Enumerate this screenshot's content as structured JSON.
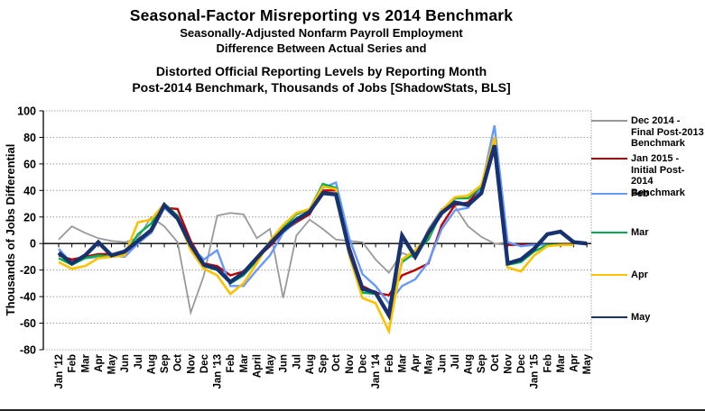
{
  "header": {
    "title": "Seasonal-Factor Misreporting vs 2014 Benchmark",
    "subtitle1": "Seasonally-Adjusted Nonfarm Payroll Employment",
    "subtitle2": "Difference Between Actual Series and",
    "subtitle3": "Distorted Official Reporting Levels by Reporting Month",
    "subtitle4": "Post-2014 Benchmark, Thousands of Jobs [ShadowStats, BLS]"
  },
  "chart_data": {
    "type": "line",
    "ylabel": "Thousands of Jobs Differential",
    "ylim": [
      -80,
      100
    ],
    "ytick_step": 20,
    "ytick_labels": [
      "100",
      "80",
      "60",
      "40",
      "20",
      "0",
      "-20",
      "-40",
      "-60",
      "-80"
    ],
    "grid": "horizontal-dotted",
    "legend_position": "right",
    "categories": [
      "Jan '12",
      "Feb",
      "Mar",
      "Apr",
      "May",
      "Jun",
      "Jul",
      "Aug",
      "Sep",
      "Oct",
      "Nov",
      "Dec",
      "Jan '13",
      "Feb",
      "Mar",
      "April",
      "May",
      "Jun",
      "Jul",
      "Aug",
      "Sep",
      "Oct",
      "Nov",
      "Dec",
      "Jan '14",
      "Feb",
      "Mar",
      "Apr",
      "May",
      "Jun",
      "Jul",
      "Aug",
      "Sep",
      "Oct",
      "Nov",
      "Dec",
      "Jan '15",
      "Feb",
      "Mar",
      "Apr",
      "May"
    ],
    "series": [
      {
        "name": "Dec 2014 - Final Post-2013 Benchmark",
        "legend_lines": [
          "Dec 2014 -",
          "Final Post-2013",
          "Benchmark"
        ],
        "color": "#999999",
        "width": 1.8,
        "values": [
          3,
          13,
          8,
          4,
          2,
          1,
          4,
          20,
          13,
          1,
          -52,
          -24,
          21,
          23,
          22,
          4,
          11,
          -41,
          6,
          18,
          11,
          3,
          2,
          1,
          -12,
          -22,
          -7,
          -11,
          11,
          26,
          28,
          13,
          5,
          0,
          -1,
          -1,
          null,
          null,
          null,
          null,
          null
        ]
      },
      {
        "name": "Jan 2015 - Initial Post-2014 Benchmark",
        "legend_lines": [
          "Jan 2015 -",
          "Initial Post-",
          "2014",
          "Benchmark"
        ],
        "color": "#c00000",
        "width": 2.4,
        "values": [
          -9,
          -12,
          -10,
          -8,
          -8,
          -7,
          1,
          8,
          27,
          26,
          2,
          -15,
          -17,
          -24,
          -21,
          -11,
          -2,
          9,
          16,
          22,
          40,
          40,
          -2,
          -32,
          -37,
          -39,
          -24,
          -20,
          -15,
          14,
          29,
          31,
          42,
          78,
          -1,
          -1,
          -1,
          null,
          null,
          null,
          null
        ]
      },
      {
        "name": "Feb",
        "legend_lines": [
          "Feb"
        ],
        "color": "#6699ff",
        "width": 2.4,
        "values": [
          -4,
          -15,
          -11,
          -10,
          -9,
          -10,
          0,
          8,
          27,
          18,
          -2,
          -12,
          -5,
          -32,
          -32,
          -20,
          -9,
          8,
          17,
          24,
          42,
          46,
          4,
          -23,
          -32,
          -45,
          -32,
          -27,
          -14,
          11,
          25,
          27,
          42,
          89,
          1,
          -2,
          -1,
          -1,
          null,
          null,
          null
        ]
      },
      {
        "name": "Mar",
        "legend_lines": [
          "Mar"
        ],
        "color": "#00b050",
        "width": 2.4,
        "values": [
          -11,
          -16,
          -11,
          -9,
          -10,
          -8,
          7,
          15,
          30,
          21,
          -2,
          -17,
          -20,
          -30,
          -24,
          -13,
          1,
          12,
          22,
          26,
          45,
          42,
          -4,
          -37,
          -38,
          -55,
          -14,
          -7,
          3,
          24,
          34,
          34,
          43,
          79,
          -16,
          -14,
          -6,
          -1,
          -1,
          null,
          null
        ]
      },
      {
        "name": "Apr",
        "legend_lines": [
          "Apr"
        ],
        "color": "#ffc000",
        "width": 2.6,
        "values": [
          -14,
          -19,
          -17,
          -11,
          -10,
          -9,
          16,
          18,
          30,
          19,
          -5,
          -19,
          -24,
          -38,
          -30,
          -15,
          2,
          14,
          23,
          26,
          43,
          41,
          -9,
          -41,
          -45,
          -66,
          -12,
          -5,
          6,
          25,
          35,
          36,
          44,
          80,
          -18,
          -21,
          -9,
          -2,
          -1,
          -1,
          null
        ]
      },
      {
        "name": "May",
        "legend_lines": [
          "May"
        ],
        "color": "#17326f",
        "width": 4.4,
        "values": [
          -7,
          -15,
          -9,
          1,
          -9,
          -6,
          2,
          10,
          29,
          19,
          -1,
          -16,
          -19,
          -29,
          -22,
          -11,
          0,
          10,
          18,
          24,
          38,
          37,
          -5,
          -34,
          -37,
          -54,
          6,
          -10,
          8,
          23,
          31,
          29,
          38,
          74,
          -15,
          -12,
          -4,
          7,
          9,
          1,
          0
        ]
      }
    ]
  },
  "legend_tops": [
    128,
    170,
    209,
    252,
    299,
    346
  ]
}
